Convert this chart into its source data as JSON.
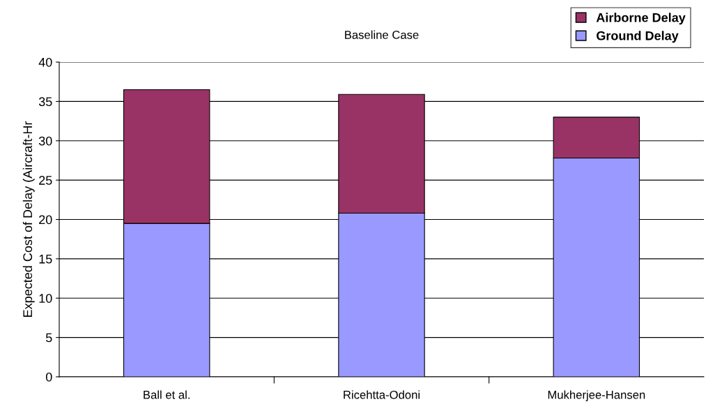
{
  "chart_data": {
    "type": "bar",
    "title": "Baseline Case",
    "ylabel": "Expected Cost of Delay (Aircraft-Hr",
    "categories": [
      "Ball et al.",
      "Ricehtta-Odoni",
      "Mukherjee-Hansen"
    ],
    "stacked": true,
    "series": [
      {
        "name": "Ground Delay",
        "color": "#9999ff",
        "values": [
          19.5,
          20.8,
          27.8
        ]
      },
      {
        "name": "Airborne Delay",
        "color": "#993366",
        "values": [
          17.0,
          15.1,
          5.2
        ]
      }
    ],
    "ylim": [
      0,
      40
    ],
    "yticks": [
      0,
      5,
      10,
      15,
      20,
      25,
      30,
      35,
      40
    ],
    "grid": "y",
    "legend": "top right"
  }
}
